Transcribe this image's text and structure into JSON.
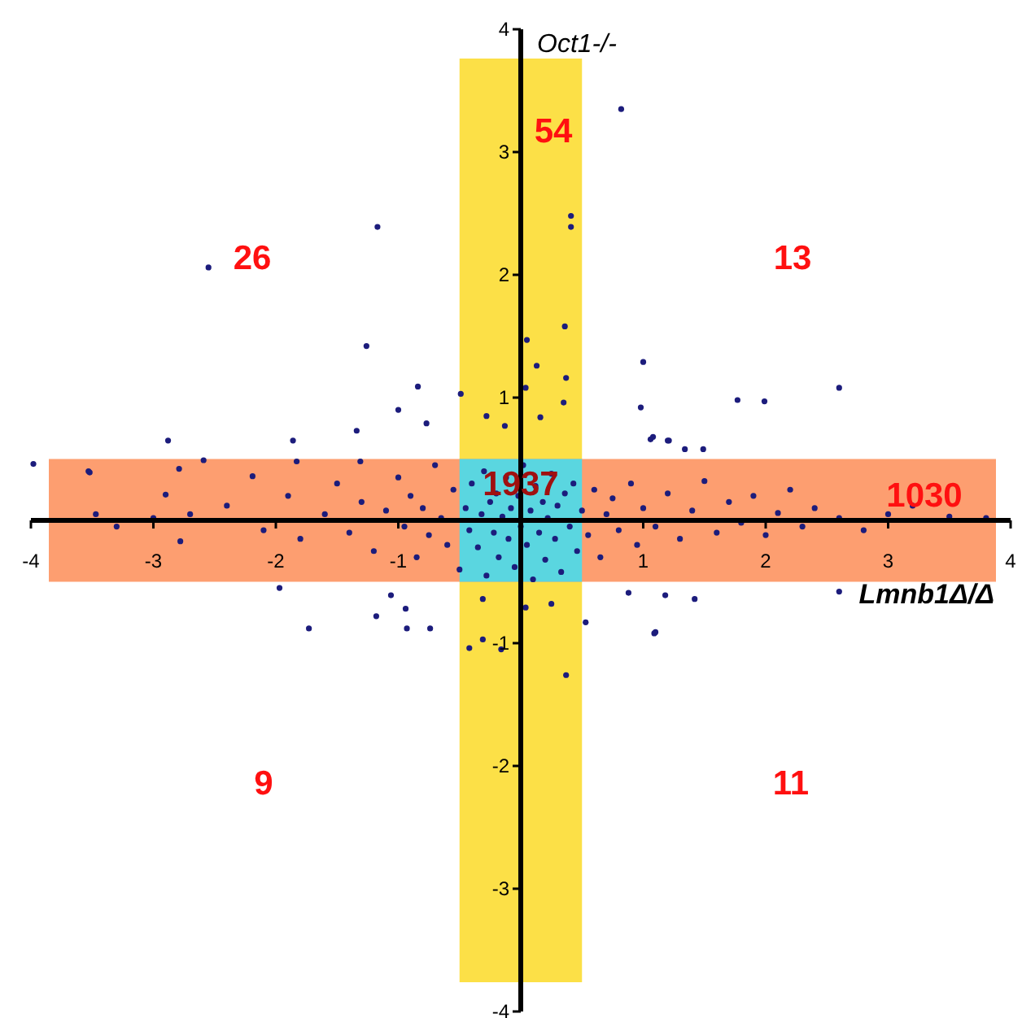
{
  "chart_data": {
    "type": "scatter",
    "xlabel": "Lmnb1Δ/Δ",
    "ylabel": "Oct1-/-",
    "xlim": [
      -4,
      4
    ],
    "ylim": [
      -4,
      4
    ],
    "xticks": [
      -4,
      -3,
      -2,
      -1,
      1,
      2,
      3,
      4
    ],
    "yticks": [
      -4,
      -3,
      -2,
      -1,
      1,
      2,
      3,
      4
    ],
    "grid": false,
    "marker": "circle",
    "color": "#1c1c7c",
    "bands": [
      {
        "axis": "x",
        "from": -0.5,
        "to": 0.5,
        "color": "#fce047"
      },
      {
        "axis": "y",
        "from": -0.5,
        "to": 0.5,
        "color": "#fd9e70"
      }
    ],
    "annotations": [
      "54",
      "26",
      "13",
      "1937",
      "1030",
      "9",
      "11"
    ],
    "x": [
      -3.98,
      -2.55,
      -1.17,
      -1.26,
      -0.84,
      -1.0,
      -0.49,
      -2.88,
      -1.86,
      -1.34,
      -0.77,
      -0.28,
      -0.13,
      -3.52,
      -2.59,
      -2.79,
      -2.19,
      -1.83,
      -1.31,
      -3.47,
      0.82,
      0.41,
      0.41,
      0.36,
      0.05,
      1.0,
      0.13,
      0.37,
      2.6,
      1.77,
      1.99,
      0.98,
      1.08,
      1.21,
      1.34,
      1.49,
      0.35,
      0.16,
      0.04,
      1.06,
      1.2,
      -1.97,
      -1.73,
      -1.18,
      -0.93,
      -0.74,
      -1.06,
      1.09,
      1.42,
      2.6,
      1.18,
      -2.78,
      -2.9,
      -3.53,
      -0.42,
      -0.31,
      -0.16,
      0.37,
      -0.31,
      0.04,
      0.25,
      0.53,
      1.1,
      0.88,
      -0.94,
      -2.4,
      -2.1,
      -1.9,
      -1.8,
      -1.6,
      -1.5,
      -1.4,
      -1.3,
      -1.2,
      -1.1,
      -1.0,
      -0.95,
      -0.9,
      -0.85,
      -0.8,
      -0.75,
      -0.7,
      -0.65,
      -0.6,
      -0.55,
      -0.5,
      -0.45,
      -0.42,
      -0.4,
      -0.35,
      -0.32,
      -0.3,
      -0.28,
      -0.25,
      -0.22,
      -0.2,
      -0.18,
      -0.15,
      -0.12,
      -0.1,
      -0.08,
      -0.05,
      -0.02,
      0,
      0.02,
      0.05,
      0.08,
      0.1,
      0.12,
      0.15,
      0.18,
      0.2,
      0.22,
      0.25,
      0.28,
      0.3,
      0.33,
      0.36,
      0.4,
      0.43,
      0.46,
      0.5,
      0.55,
      0.6,
      0.65,
      0.7,
      0.75,
      0.8,
      0.9,
      0.95,
      1.0,
      1.1,
      1.2,
      1.3,
      1.4,
      1.5,
      1.6,
      1.7,
      1.8,
      1.9,
      2.0,
      2.1,
      2.2,
      2.3,
      2.4,
      2.6,
      2.8,
      3.0,
      3.2,
      3.5,
      3.8,
      -3.0,
      -3.3,
      -2.7
    ],
    "values": [
      0.46,
      2.06,
      2.39,
      1.42,
      1.09,
      0.9,
      1.03,
      0.65,
      0.65,
      0.73,
      0.79,
      0.85,
      0.77,
      0.39,
      0.49,
      0.42,
      0.36,
      0.48,
      0.48,
      0.05,
      3.35,
      2.48,
      2.39,
      1.58,
      1.47,
      1.29,
      1.26,
      1.16,
      1.08,
      0.98,
      0.97,
      0.92,
      0.68,
      0.65,
      0.58,
      0.58,
      0.96,
      0.84,
      1.08,
      0.66,
      0.65,
      -0.55,
      -0.88,
      -0.78,
      -0.88,
      -0.88,
      -0.61,
      -0.92,
      -0.64,
      -0.58,
      -0.61,
      -0.17,
      0.21,
      0.4,
      -1.04,
      -0.97,
      -1.05,
      -1.26,
      -0.64,
      -0.71,
      -0.68,
      -0.83,
      -0.91,
      -0.59,
      -0.72,
      0.12,
      -0.08,
      0.2,
      -0.15,
      0.05,
      0.3,
      -0.1,
      0.15,
      -0.25,
      0.08,
      0.35,
      -0.05,
      0.2,
      -0.3,
      0.1,
      -0.12,
      0.45,
      0.02,
      -0.2,
      0.25,
      -0.4,
      0.1,
      -0.08,
      0.3,
      -0.22,
      0.05,
      0.4,
      -0.45,
      0.15,
      -0.1,
      0.22,
      -0.3,
      0.03,
      0.35,
      -0.15,
      0.1,
      -0.38,
      0.2,
      -0.05,
      0.45,
      -0.2,
      0.08,
      -0.48,
      0.28,
      -0.1,
      0.15,
      -0.32,
      0.02,
      0.38,
      -0.15,
      0.12,
      -0.42,
      0.22,
      -0.05,
      0.3,
      -0.25,
      0.08,
      -0.12,
      0.25,
      -0.3,
      0.05,
      0.18,
      -0.08,
      0.3,
      -0.2,
      0.1,
      -0.05,
      0.22,
      -0.15,
      0.08,
      0.32,
      -0.1,
      0.15,
      -0.02,
      0.2,
      -0.12,
      0.06,
      0.25,
      -0.05,
      0.1,
      0.02,
      -0.08,
      0.05,
      0.12,
      0.03,
      0.02,
      0.02,
      -0.05,
      0.05
    ]
  }
}
